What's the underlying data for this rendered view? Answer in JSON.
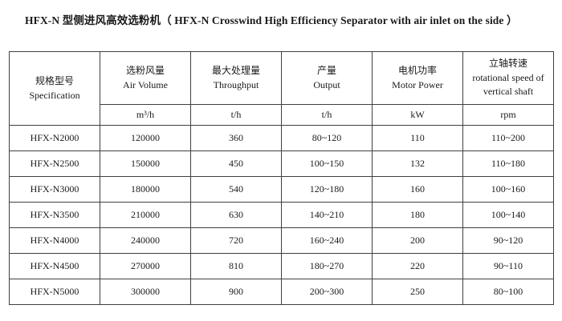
{
  "page": {
    "title": "HFX-N 型侧进风高效选粉机（ HFX-N Crosswind High Efficiency Separator with air inlet on the side ）"
  },
  "colors": {
    "bg": "#ffffff",
    "text": "#1a1a1a",
    "border": "#3f3f3f"
  },
  "table": {
    "columns": [
      {
        "zh": "规格型号",
        "en": "Specification",
        "unit": ""
      },
      {
        "zh": "选粉风量",
        "en": "Air Volume",
        "unit": "m³/h"
      },
      {
        "zh": "最大处理量",
        "en": "Throughput",
        "unit": "t/h"
      },
      {
        "zh": "产量",
        "en": "Output",
        "unit": "t/h"
      },
      {
        "zh": "电机功率",
        "en": "Motor Power",
        "unit": "kW"
      },
      {
        "zh": "立轴转速",
        "en": "rotational speed of vertical shaft",
        "unit": "rpm"
      }
    ],
    "rows": [
      [
        "HFX-N2000",
        "120000",
        "360",
        "80~120",
        "110",
        "110~200"
      ],
      [
        "HFX-N2500",
        "150000",
        "450",
        "100~150",
        "132",
        "110~180"
      ],
      [
        "HFX-N3000",
        "180000",
        "540",
        "120~180",
        "160",
        "100~160"
      ],
      [
        "HFX-N3500",
        "210000",
        "630",
        "140~210",
        "180",
        "100~140"
      ],
      [
        "HFX-N4000",
        "240000",
        "720",
        "160~240",
        "200",
        "90~120"
      ],
      [
        "HFX-N4500",
        "270000",
        "810",
        "180~270",
        "220",
        "90~110"
      ],
      [
        "HFX-N5000",
        "300000",
        "900",
        "200~300",
        "250",
        "80~100"
      ]
    ]
  }
}
